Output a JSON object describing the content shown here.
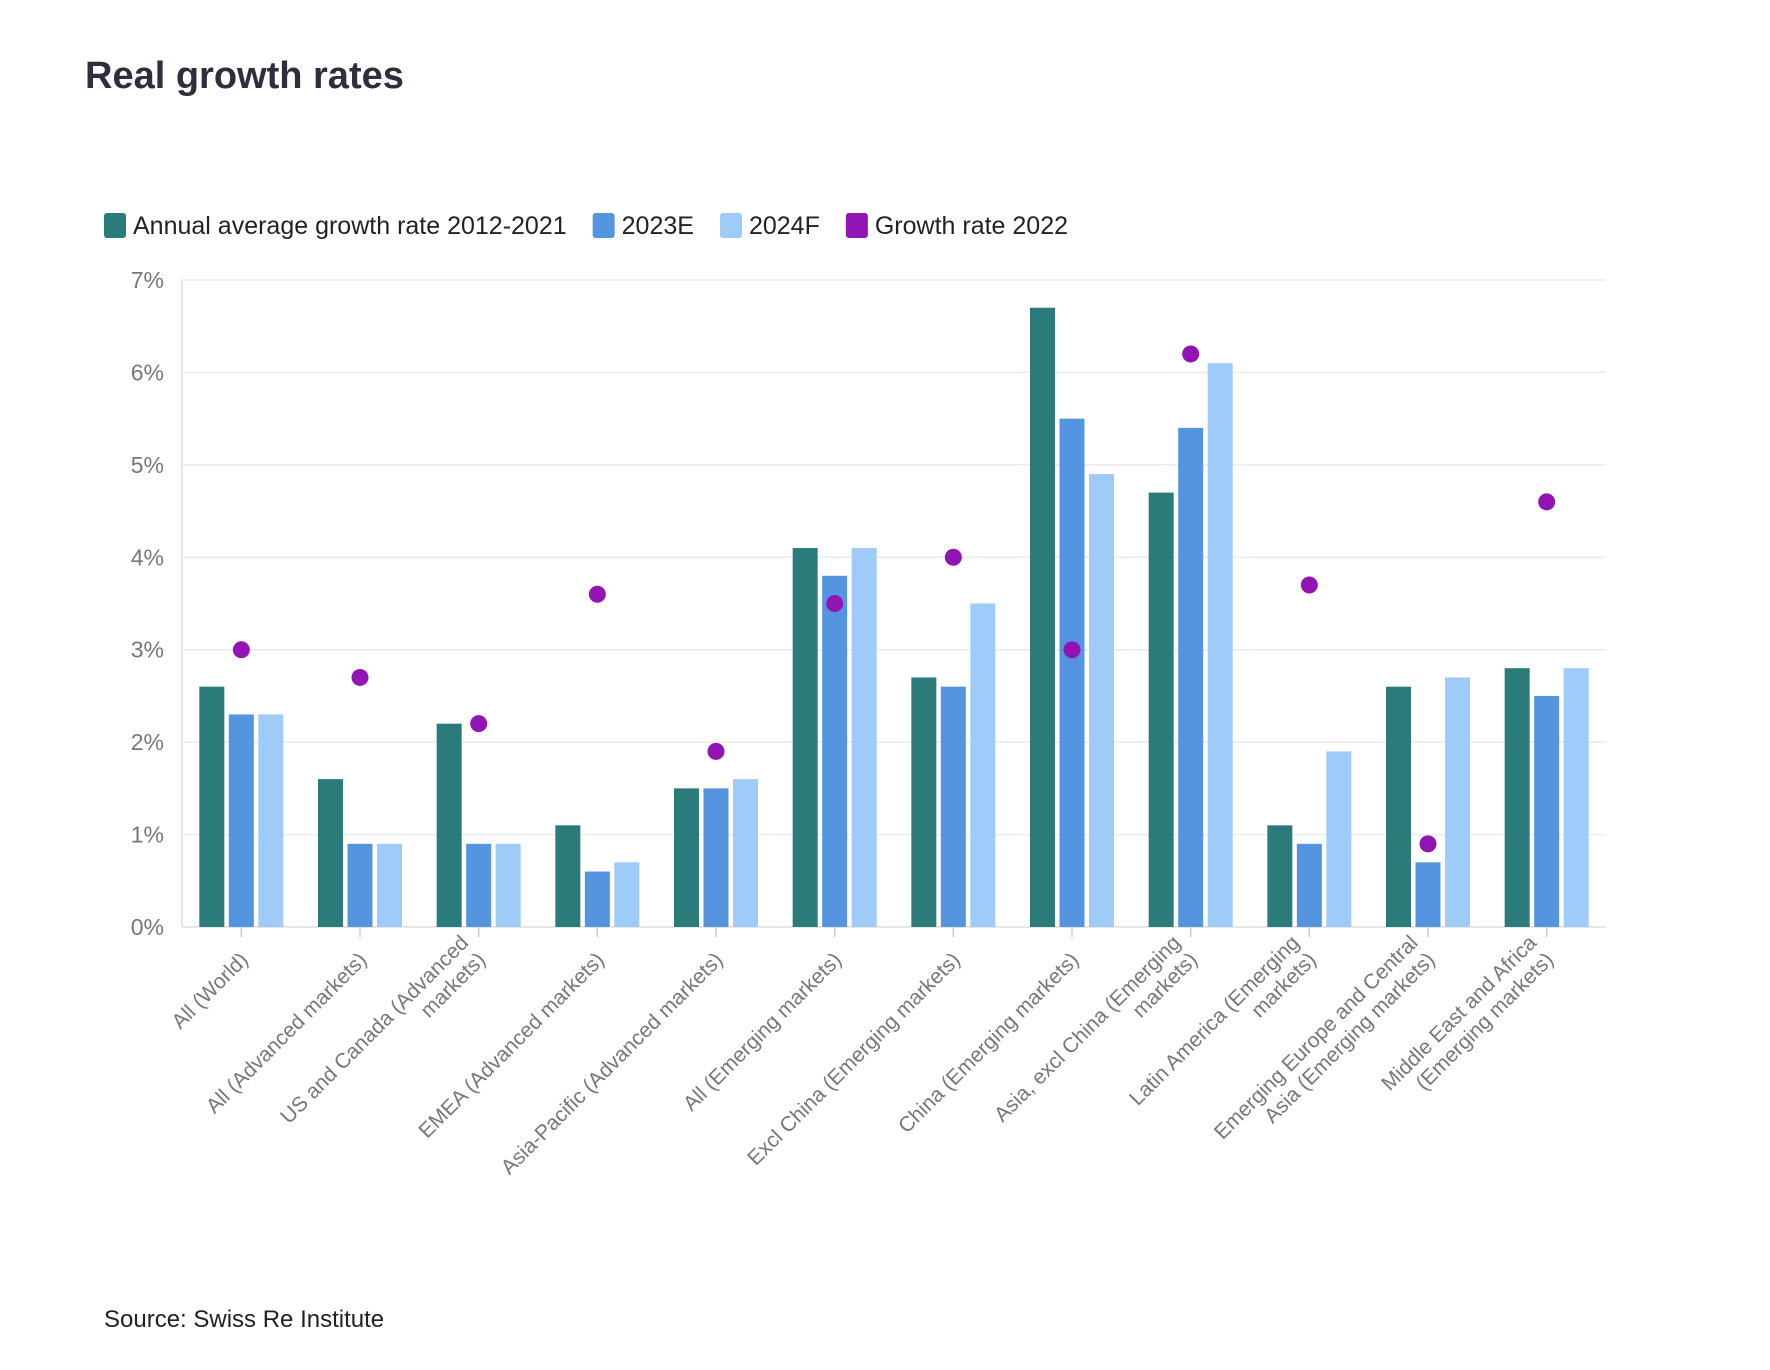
{
  "chart_data": {
    "type": "bar",
    "title": "Real growth rates",
    "source": "Source: Swiss Re Institute",
    "categories": [
      "All (World)",
      "All (Advanced markets)",
      "US and Canada (Advanced markets)",
      "EMEA (Advanced markets)",
      "Asia-Pacific (Advanced markets)",
      "All (Emerging markets)",
      "Excl China (Emerging markets)",
      "China (Emerging markets)",
      "Asia, excl China (Emerging markets)",
      "Latin America (Emerging markets)",
      "Emerging Europe and Central Asia (Emerging markets)",
      "Middle East and Africa (Emerging markets)"
    ],
    "series": [
      {
        "name": "Annual average growth rate 2012-2021",
        "type": "bar",
        "color": "#2b7b7b",
        "values": [
          2.6,
          1.6,
          2.2,
          1.1,
          1.5,
          4.1,
          2.7,
          6.7,
          4.7,
          1.1,
          2.6,
          2.8
        ]
      },
      {
        "name": "2023E",
        "type": "bar",
        "color": "#5595e0",
        "values": [
          2.3,
          0.9,
          0.9,
          0.6,
          1.5,
          3.8,
          2.6,
          5.5,
          5.4,
          0.9,
          0.7,
          2.5
        ]
      },
      {
        "name": "2024F",
        "type": "bar",
        "color": "#9ecbf7",
        "values": [
          2.3,
          0.9,
          0.9,
          0.7,
          1.6,
          4.1,
          3.5,
          4.9,
          6.1,
          1.9,
          2.7,
          2.8
        ]
      },
      {
        "name": "Growth rate 2022",
        "type": "dot",
        "color": "#9214b4",
        "values": [
          3.0,
          2.7,
          2.2,
          3.6,
          1.9,
          3.5,
          4.0,
          3.0,
          6.2,
          3.7,
          0.9,
          4.6
        ]
      }
    ],
    "ylim": [
      0,
      7
    ],
    "yticks": [
      {
        "value": 0,
        "label": "0%"
      },
      {
        "value": 1,
        "label": "1%"
      },
      {
        "value": 2,
        "label": "2%"
      },
      {
        "value": 3,
        "label": "3%"
      },
      {
        "value": 4,
        "label": "4%"
      },
      {
        "value": 5,
        "label": "5%"
      },
      {
        "value": 6,
        "label": "6%"
      },
      {
        "value": 7,
        "label": "7%"
      }
    ],
    "grid": true
  }
}
